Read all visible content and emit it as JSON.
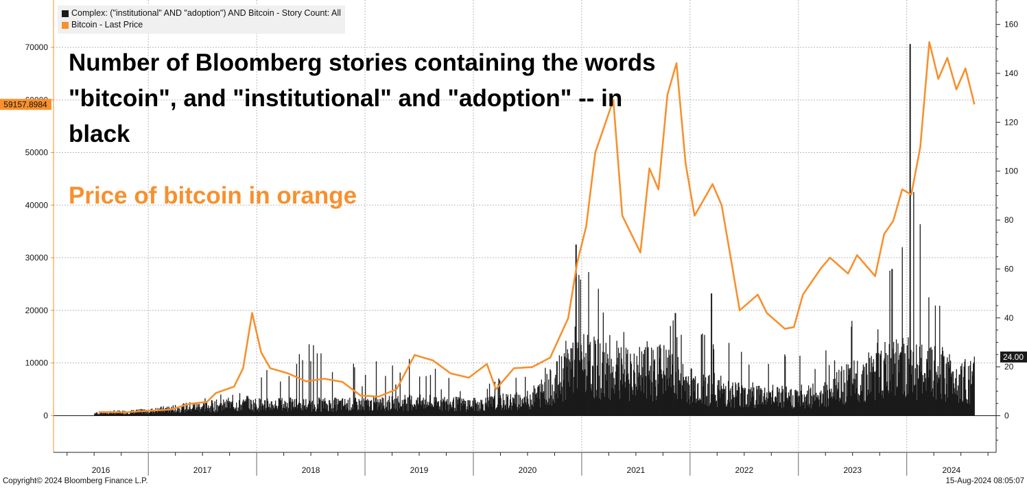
{
  "chart_data": {
    "type": "bar+line",
    "title": "",
    "annotations": {
      "black_text": "Number of Bloomberg stories containing the words \"bitcoin\", and \"institutional\" and \"adoption\" -- in black",
      "orange_text": "Price of bitcoin in orange"
    },
    "legend": {
      "placement": "top-left",
      "entries": [
        {
          "label": "Complex: (\"institutional\" AND \"adoption\") AND Bitcoin - Story Count: All",
          "color": "#1a1a1a"
        },
        {
          "label": "Bitcoin - Last Price",
          "color": "#f7902d"
        }
      ]
    },
    "x_axis": {
      "ticks": [
        "2016",
        "2017",
        "2018",
        "2019",
        "2020",
        "2021",
        "2022",
        "2023",
        "2024"
      ],
      "range": [
        "2016-07",
        "2024-08"
      ]
    },
    "left_axis": {
      "label": "",
      "range": [
        -7000,
        79000
      ],
      "ticks": [
        0,
        10000,
        20000,
        30000,
        40000,
        50000,
        60000,
        70000
      ],
      "current_value_label": "59157.8984"
    },
    "right_axis": {
      "label": "",
      "range": [
        -15,
        170
      ],
      "ticks": [
        0,
        20,
        40,
        60,
        80,
        100,
        120,
        140,
        160
      ],
      "current_value_label": "24.00"
    },
    "grid": true,
    "series": [
      {
        "name": "Bitcoin - Last Price",
        "axis": "left",
        "color": "#f7902d",
        "x": [
          "2016-07",
          "2016-10",
          "2017-01",
          "2017-03",
          "2017-05",
          "2017-07",
          "2017-08",
          "2017-10",
          "2017-11",
          "2017-12",
          "2018-01",
          "2018-02",
          "2018-04",
          "2018-06",
          "2018-08",
          "2018-10",
          "2018-12",
          "2019-02",
          "2019-04",
          "2019-06",
          "2019-08",
          "2019-10",
          "2019-12",
          "2020-02",
          "2020-03",
          "2020-05",
          "2020-07",
          "2020-09",
          "2020-11",
          "2020-12",
          "2021-01",
          "2021-02",
          "2021-04",
          "2021-05",
          "2021-07",
          "2021-08",
          "2021-09",
          "2021-10",
          "2021-11",
          "2021-12",
          "2022-01",
          "2022-03",
          "2022-04",
          "2022-05",
          "2022-06",
          "2022-08",
          "2022-09",
          "2022-11",
          "2022-12",
          "2023-01",
          "2023-03",
          "2023-04",
          "2023-06",
          "2023-07",
          "2023-09",
          "2023-10",
          "2023-11",
          "2023-12",
          "2024-01",
          "2024-02",
          "2024-03",
          "2024-04",
          "2024-05",
          "2024-06",
          "2024-07",
          "2024-08"
        ],
        "values": [
          650,
          620,
          950,
          1150,
          2200,
          2600,
          4300,
          5500,
          9000,
          19500,
          12000,
          9000,
          8000,
          6500,
          7000,
          6400,
          3800,
          3600,
          5000,
          11500,
          10500,
          8000,
          7200,
          9800,
          5000,
          9000,
          9200,
          11000,
          18500,
          29000,
          36000,
          50000,
          60000,
          38000,
          31000,
          47000,
          43000,
          61000,
          67000,
          48000,
          38000,
          44000,
          40000,
          30000,
          20000,
          23000,
          19500,
          16500,
          16800,
          23000,
          28000,
          30000,
          27000,
          30500,
          26500,
          34500,
          37000,
          43000,
          42000,
          51000,
          71000,
          64000,
          68000,
          62000,
          66000,
          59158
        ]
      },
      {
        "name": "Complex: (\"institutional\" AND \"adoption\") AND Bitcoin - Story Count: All",
        "axis": "right",
        "color": "#1a1a1a",
        "period_levels": {
          "x": [
            "2016-07",
            "2017-01",
            "2017-06",
            "2017-12",
            "2018-06",
            "2019-01",
            "2019-06",
            "2020-01",
            "2020-07",
            "2020-10",
            "2020-12",
            "2021-02",
            "2021-06",
            "2021-10",
            "2022-01",
            "2022-06",
            "2022-12",
            "2023-04",
            "2023-06",
            "2023-10",
            "2024-01",
            "2024-03",
            "2024-06",
            "2024-08"
          ],
          "typical_values": [
            1,
            2,
            4,
            5,
            5,
            5,
            6,
            5,
            7,
            14,
            25,
            22,
            18,
            20,
            14,
            10,
            8,
            10,
            14,
            20,
            22,
            20,
            18,
            15
          ],
          "peak_values": [
            2,
            3,
            6,
            12,
            32,
            22,
            24,
            12,
            20,
            30,
            70,
            58,
            34,
            36,
            50,
            30,
            26,
            30,
            38,
            42,
            152,
            50,
            44,
            27
          ]
        },
        "notable_peaks": [
          {
            "x": "2020-12",
            "value": 70
          },
          {
            "x": "2021-11",
            "value": 42
          },
          {
            "x": "2022-03",
            "value": 50
          },
          {
            "x": "2023-11",
            "value": 60
          },
          {
            "x": "2024-01",
            "value": 152
          }
        ],
        "last_value": 24
      }
    ]
  },
  "footer": {
    "copyright": "Copyright© 2024 Bloomberg Finance L.P.",
    "timestamp": "15-Aug-2024 08:05:07"
  }
}
